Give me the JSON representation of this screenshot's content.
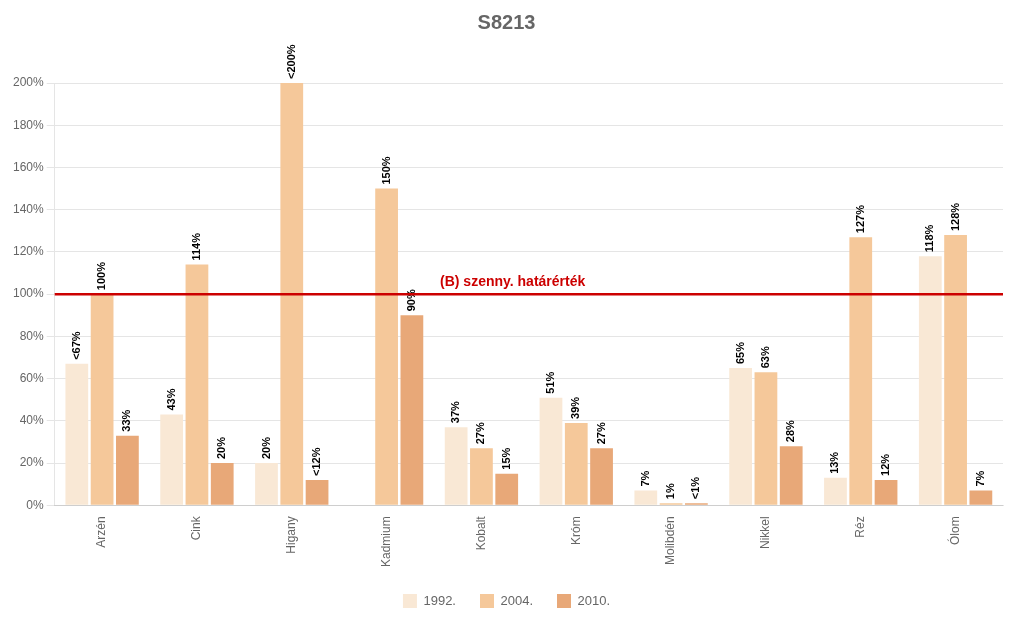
{
  "chart_data": {
    "type": "bar",
    "title": "S8213",
    "categories": [
      "Arzén",
      "Cink",
      "Higany",
      "Kadmium",
      "Kobalt",
      "Króm",
      "Molibdén",
      "Nikkel",
      "Réz",
      "Ólom"
    ],
    "series": [
      {
        "name": "1992.",
        "color": "#F9E8D5",
        "values": [
          67,
          43,
          20,
          null,
          37,
          51,
          7,
          65,
          13,
          118
        ],
        "value_labels": [
          "<67%",
          "43%",
          "20%",
          null,
          "37%",
          "51%",
          "7%",
          "65%",
          "13%",
          "118%"
        ]
      },
      {
        "name": "2004.",
        "color": "#F5C89A",
        "values": [
          100,
          114,
          200,
          150,
          27,
          39,
          1,
          63,
          127,
          128
        ],
        "value_labels": [
          "100%",
          "114%",
          "<200%",
          "150%",
          "27%",
          "39%",
          "1%",
          "63%",
          "127%",
          "128%"
        ]
      },
      {
        "name": "2010.",
        "color": "#E8A878",
        "values": [
          33,
          20,
          12,
          90,
          15,
          27,
          1,
          28,
          12,
          7
        ],
        "value_labels": [
          "33%",
          "20%",
          "<12%",
          "90%",
          "15%",
          "27%",
          "<1%",
          "28%",
          "12%",
          "7%"
        ]
      }
    ],
    "annotations": [
      {
        "text": "(B) szenny. határérték",
        "y": 100,
        "color": "#CC0000"
      }
    ],
    "ylim": [
      0,
      200
    ],
    "yticks": [
      {
        "value": 0,
        "label": "0%"
      },
      {
        "value": 20,
        "label": "20%"
      },
      {
        "value": 40,
        "label": "40%"
      },
      {
        "value": 60,
        "label": "60%"
      },
      {
        "value": 80,
        "label": "80%"
      },
      {
        "value": 100,
        "label": "100%"
      },
      {
        "value": 120,
        "label": "120%"
      },
      {
        "value": 140,
        "label": "140%"
      },
      {
        "value": 160,
        "label": "160%"
      },
      {
        "value": 180,
        "label": "180%"
      },
      {
        "value": 200,
        "label": "200%"
      }
    ],
    "grid": true,
    "legend": "bottom",
    "data_labels": true
  }
}
